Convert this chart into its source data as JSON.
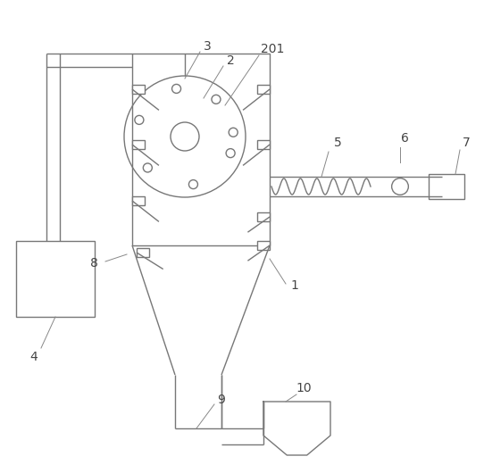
{
  "bg": "#ffffff",
  "lc": "#777777",
  "lw": 1.0,
  "label_fs": 10,
  "label_color": "#444444",
  "leader_lw": 0.7,
  "leader_color": "#888888"
}
